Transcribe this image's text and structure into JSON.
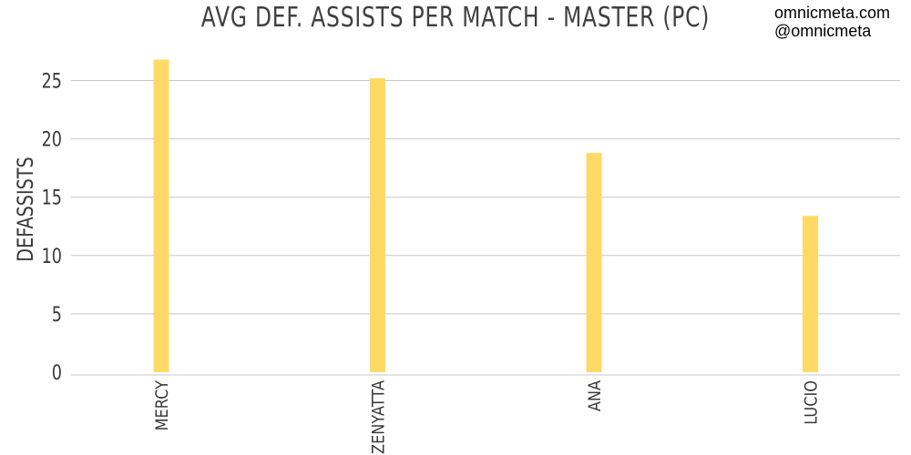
{
  "watermark": {
    "line1": "omnicmeta.com",
    "line2": "@omnicmeta"
  },
  "colors": {
    "bar": "#FFD966",
    "grid": "#c8c8c8",
    "text": "#3a3a3a"
  },
  "chart_data": {
    "type": "bar",
    "title": "AVG DEF. ASSISTS PER MATCH - MASTER (PC)",
    "xlabel": "",
    "ylabel": "DEFASSISTS",
    "categories": [
      "MERCY",
      "ZENYATTA",
      "ANA",
      "LUCIO"
    ],
    "values": [
      26.8,
      25.2,
      18.8,
      13.4
    ],
    "ylim": [
      0,
      28
    ],
    "yticks": [
      0,
      5,
      10,
      15,
      20,
      25
    ],
    "grid": true,
    "legend": "none"
  }
}
